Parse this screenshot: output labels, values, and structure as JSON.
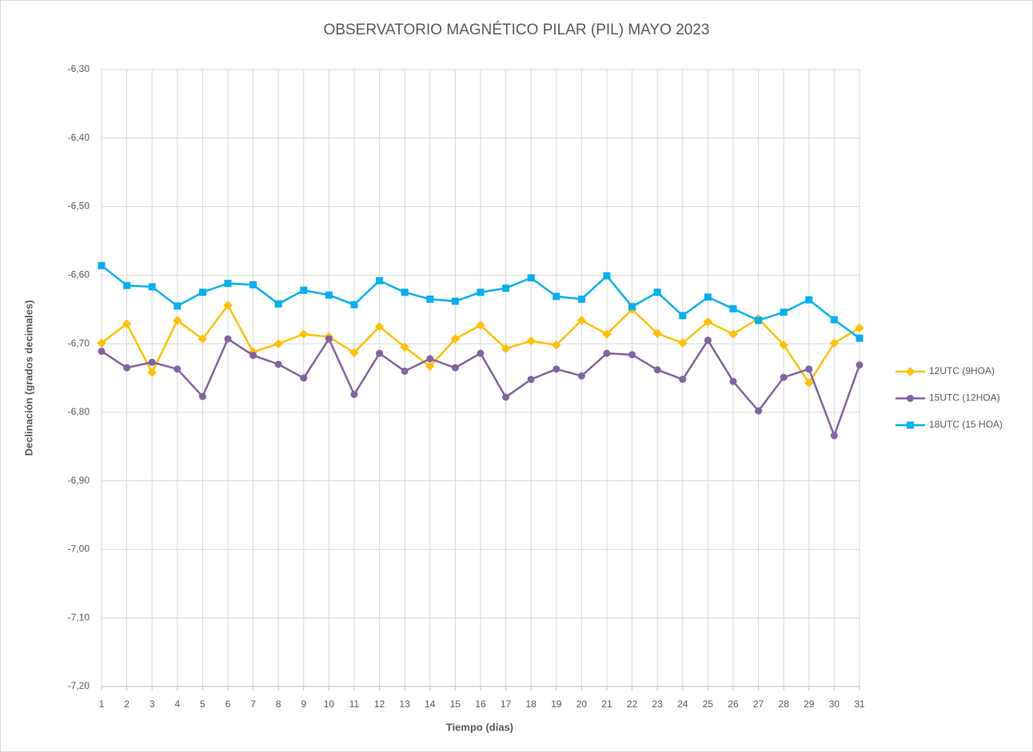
{
  "chart_data": {
    "type": "line",
    "title": "OBSERVATORIO MAGNÉTICO PILAR (PIL) MAYO 2023",
    "x_label": "Tiempo (días)",
    "y_label": "Declinación (grados decimales)",
    "x": [
      1,
      2,
      3,
      4,
      5,
      6,
      7,
      8,
      9,
      10,
      11,
      12,
      13,
      14,
      15,
      16,
      17,
      18,
      19,
      20,
      21,
      22,
      23,
      24,
      25,
      26,
      27,
      28,
      29,
      30,
      31
    ],
    "xlim": [
      1,
      31
    ],
    "xticks": [
      1,
      2,
      3,
      4,
      5,
      6,
      7,
      8,
      9,
      10,
      11,
      12,
      13,
      14,
      15,
      16,
      17,
      18,
      19,
      20,
      21,
      22,
      23,
      24,
      25,
      26,
      27,
      28,
      29,
      30,
      31
    ],
    "ylim": [
      -7.2,
      -6.3
    ],
    "yticks": [
      {
        "value": -6.3,
        "label": "-6,30"
      },
      {
        "value": -6.4,
        "label": "-6,40"
      },
      {
        "value": -6.5,
        "label": "-6,50"
      },
      {
        "value": -6.6,
        "label": "-6,60"
      },
      {
        "value": -6.7,
        "label": "-6,70"
      },
      {
        "value": -6.8,
        "label": "-6,80"
      },
      {
        "value": -6.9,
        "label": "-6,90"
      },
      {
        "value": -7.0,
        "label": "-7,00"
      },
      {
        "value": -7.1,
        "label": "-7,10"
      },
      {
        "value": -7.2,
        "label": "-7,20"
      }
    ],
    "grid": true,
    "legend": "right",
    "series": [
      {
        "name": "12UTC (9HOA)",
        "color": "#ffc000",
        "marker": "diamond",
        "values": [
          -6.699,
          -6.671,
          -6.742,
          -6.666,
          -6.693,
          -6.644,
          -6.712,
          -6.7,
          -6.686,
          -6.69,
          -6.713,
          -6.675,
          -6.705,
          -6.733,
          -6.693,
          -6.673,
          -6.707,
          -6.696,
          -6.702,
          -6.666,
          -6.686,
          -6.65,
          -6.685,
          -6.699,
          -6.668,
          -6.686,
          -6.663,
          -6.702,
          -6.757,
          -6.699,
          -6.677
        ]
      },
      {
        "name": "15UTC (12HOA)",
        "color": "#8064a2",
        "marker": "circle",
        "values": [
          -6.711,
          -6.735,
          -6.727,
          -6.737,
          -6.777,
          -6.693,
          -6.717,
          -6.73,
          -6.75,
          -6.693,
          -6.774,
          -6.714,
          -6.74,
          -6.722,
          -6.735,
          -6.714,
          -6.778,
          -6.752,
          -6.737,
          -6.747,
          -6.714,
          -6.716,
          -6.738,
          -6.752,
          -6.695,
          -6.755,
          -6.798,
          -6.749,
          -6.737,
          -6.834,
          -6.731
        ]
      },
      {
        "name": "18UTC (15 HOA)",
        "color": "#00b0f0",
        "marker": "square",
        "values": [
          -6.586,
          -6.615,
          -6.617,
          -6.645,
          -6.625,
          -6.612,
          -6.614,
          -6.642,
          -6.622,
          -6.629,
          -6.643,
          -6.608,
          -6.625,
          -6.635,
          -6.638,
          -6.625,
          -6.619,
          -6.604,
          -6.631,
          -6.635,
          -6.601,
          -6.646,
          -6.625,
          -6.659,
          -6.632,
          -6.649,
          -6.666,
          -6.654,
          -6.636,
          -6.665,
          -6.692
        ]
      }
    ]
  }
}
